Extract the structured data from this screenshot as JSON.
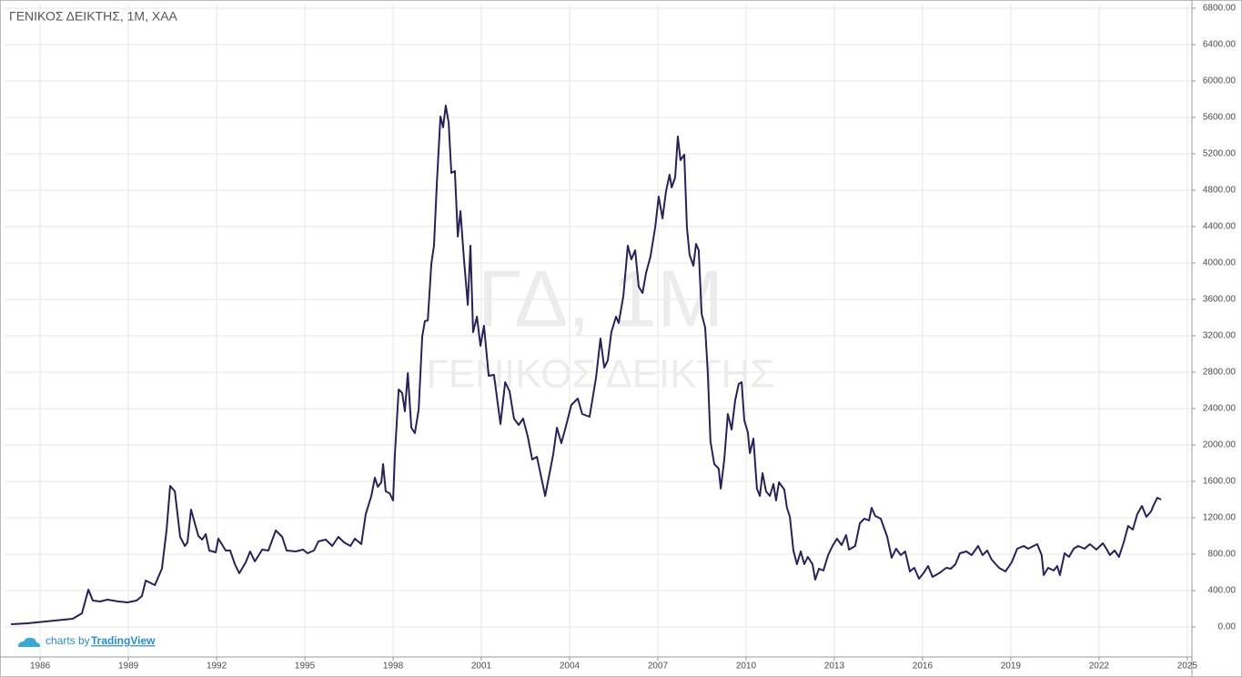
{
  "chart_data": {
    "type": "line",
    "title": "ΓΕΝΙΚΟΣ ΔΕΙΚΤΗΣ, 1M, ΧΑΑ",
    "watermark": [
      "ΓΔ, 1M",
      "ΓΕΝΙΚΟΣ ΔΕΙΚΤΗΣ"
    ],
    "attribution": {
      "prefix": "charts by",
      "link": "TradingView"
    },
    "grid": true,
    "xlim": [
      1984.79,
      2025.16
    ],
    "xticks": [
      1986,
      1989,
      1992,
      1995,
      1998,
      2001,
      2004,
      2007,
      2010,
      2013,
      2016,
      2019,
      2022,
      2025
    ],
    "ylim": [
      -330,
      6840
    ],
    "yticks": [
      {
        "value": 0,
        "label": "0.00"
      },
      {
        "value": 400,
        "label": "400.00"
      },
      {
        "value": 800,
        "label": "800.00"
      },
      {
        "value": 1200,
        "label": "1200.00"
      },
      {
        "value": 1600,
        "label": "1600.00"
      },
      {
        "value": 2000,
        "label": "2000.00"
      },
      {
        "value": 2400,
        "label": "2400.00"
      },
      {
        "value": 2800,
        "label": "2800.00"
      },
      {
        "value": 3200,
        "label": "3200.00"
      },
      {
        "value": 3600,
        "label": "3600.00"
      },
      {
        "value": 4000,
        "label": "4000.00"
      },
      {
        "value": 4400,
        "label": "4400.00"
      },
      {
        "value": 4800,
        "label": "4800.00"
      },
      {
        "value": 5200,
        "label": "5200.00"
      },
      {
        "value": 5600,
        "label": "5600.00"
      },
      {
        "value": 6000,
        "label": "6000.00"
      },
      {
        "value": 6400,
        "label": "6400.00"
      },
      {
        "value": 6800,
        "label": "6800.00"
      }
    ],
    "x": [
      1985.01,
      1985.57,
      1986.49,
      1987.11,
      1987.42,
      1987.64,
      1987.79,
      1988.04,
      1988.29,
      1988.66,
      1988.97,
      1989.28,
      1989.46,
      1989.59,
      1989.9,
      1990.14,
      1990.3,
      1990.42,
      1990.58,
      1990.76,
      1990.92,
      1991.01,
      1991.13,
      1991.38,
      1991.51,
      1991.63,
      1991.75,
      1991.97,
      1992.06,
      1992.31,
      1992.46,
      1992.62,
      1992.77,
      1992.99,
      1993.14,
      1993.3,
      1993.55,
      1993.76,
      1994.01,
      1994.23,
      1994.38,
      1994.69,
      1994.94,
      1995.09,
      1995.31,
      1995.46,
      1995.71,
      1995.93,
      1996.14,
      1996.33,
      1996.55,
      1996.7,
      1996.92,
      1997.07,
      1997.26,
      1997.38,
      1997.48,
      1997.6,
      1997.66,
      1997.75,
      1997.88,
      1998.0,
      1998.06,
      1998.19,
      1998.31,
      1998.4,
      1998.5,
      1998.62,
      1998.74,
      1998.87,
      1998.99,
      1999.08,
      1999.18,
      1999.3,
      1999.39,
      1999.49,
      1999.61,
      1999.7,
      1999.79,
      1999.89,
      1999.98,
      2000.1,
      2000.2,
      2000.29,
      2000.41,
      2000.54,
      2000.63,
      2000.72,
      2000.85,
      2000.97,
      2001.09,
      2001.25,
      2001.43,
      2001.65,
      2001.81,
      2001.96,
      2002.11,
      2002.27,
      2002.42,
      2002.58,
      2002.73,
      2002.89,
      2003.04,
      2003.17,
      2003.32,
      2003.44,
      2003.57,
      2003.72,
      2003.88,
      2004.06,
      2004.28,
      2004.43,
      2004.68,
      2004.9,
      2005.05,
      2005.18,
      2005.3,
      2005.42,
      2005.58,
      2005.67,
      2005.83,
      2005.98,
      2006.1,
      2006.23,
      2006.35,
      2006.48,
      2006.6,
      2006.75,
      2006.91,
      2007.03,
      2007.16,
      2007.28,
      2007.4,
      2007.47,
      2007.59,
      2007.68,
      2007.77,
      2007.9,
      2007.99,
      2008.08,
      2008.21,
      2008.3,
      2008.39,
      2008.49,
      2008.61,
      2008.7,
      2008.79,
      2008.92,
      2009.07,
      2009.14,
      2009.26,
      2009.38,
      2009.51,
      2009.63,
      2009.75,
      2009.85,
      2009.94,
      2010.06,
      2010.13,
      2010.25,
      2010.37,
      2010.47,
      2010.56,
      2010.68,
      2010.81,
      2010.93,
      2011.02,
      2011.12,
      2011.3,
      2011.39,
      2011.49,
      2011.61,
      2011.73,
      2011.86,
      2011.98,
      2012.1,
      2012.26,
      2012.35,
      2012.48,
      2012.63,
      2012.79,
      2012.94,
      2013.09,
      2013.25,
      2013.4,
      2013.5,
      2013.71,
      2013.87,
      2014.02,
      2014.18,
      2014.27,
      2014.39,
      2014.58,
      2014.8,
      2014.95,
      2015.1,
      2015.26,
      2015.41,
      2015.57,
      2015.72,
      2015.88,
      2016.03,
      2016.19,
      2016.34,
      2016.56,
      2016.81,
      2016.96,
      2017.12,
      2017.27,
      2017.49,
      2017.67,
      2017.89,
      2018.04,
      2018.2,
      2018.35,
      2018.6,
      2018.82,
      2019.03,
      2019.22,
      2019.44,
      2019.59,
      2019.9,
      2020.05,
      2020.12,
      2020.27,
      2020.46,
      2020.58,
      2020.67,
      2020.83,
      2020.98,
      2021.14,
      2021.29,
      2021.51,
      2021.69,
      2021.91,
      2022.13,
      2022.25,
      2022.37,
      2022.53,
      2022.68,
      2022.84,
      2022.99,
      2023.15,
      2023.3,
      2023.46,
      2023.61,
      2023.77,
      2023.86,
      2023.98,
      2024.11
    ],
    "series": [
      {
        "color": "#272257",
        "values": [
          30,
          40,
          70,
          90,
          150,
          410,
          290,
          280,
          300,
          280,
          270,
          290,
          340,
          510,
          460,
          640,
          1070,
          1550,
          1490,
          990,
          890,
          930,
          1290,
          1000,
          960,
          1020,
          840,
          820,
          970,
          840,
          840,
          690,
          590,
          710,
          830,
          720,
          850,
          840,
          1060,
          990,
          840,
          830,
          850,
          810,
          840,
          940,
          960,
          890,
          990,
          930,
          890,
          970,
          910,
          1240,
          1440,
          1640,
          1540,
          1590,
          1790,
          1490,
          1470,
          1390,
          1890,
          2610,
          2570,
          2370,
          2790,
          2190,
          2130,
          2390,
          3190,
          3360,
          3370,
          3990,
          4190,
          4890,
          5610,
          5490,
          5730,
          5540,
          4990,
          5010,
          4290,
          4570,
          4040,
          3540,
          4190,
          3240,
          3410,
          3090,
          3310,
          2760,
          2770,
          2230,
          2690,
          2590,
          2290,
          2220,
          2290,
          2090,
          1840,
          1870,
          1640,
          1440,
          1690,
          1890,
          2190,
          2020,
          2210,
          2440,
          2510,
          2340,
          2310,
          2740,
          3170,
          2850,
          2930,
          3240,
          3410,
          3340,
          3640,
          4190,
          4040,
          4140,
          3740,
          3670,
          3890,
          4070,
          4390,
          4730,
          4490,
          4790,
          4970,
          4830,
          4940,
          5390,
          5130,
          5190,
          4390,
          4090,
          3970,
          4210,
          4140,
          3440,
          3290,
          2790,
          2040,
          1790,
          1740,
          1520,
          1840,
          2340,
          2170,
          2490,
          2670,
          2690,
          2270,
          2140,
          1910,
          2070,
          1520,
          1440,
          1690,
          1490,
          1440,
          1570,
          1390,
          1590,
          1510,
          1310,
          1210,
          840,
          690,
          830,
          690,
          770,
          690,
          520,
          640,
          620,
          790,
          890,
          970,
          900,
          1010,
          850,
          890,
          1140,
          1190,
          1170,
          1310,
          1220,
          1190,
          990,
          760,
          860,
          790,
          830,
          610,
          650,
          530,
          590,
          670,
          550,
          590,
          650,
          640,
          690,
          810,
          830,
          790,
          890,
          790,
          840,
          740,
          650,
          610,
          710,
          860,
          890,
          860,
          910,
          790,
          570,
          650,
          620,
          670,
          570,
          810,
          770,
          860,
          890,
          860,
          910,
          850,
          920,
          860,
          790,
          840,
          770,
          930,
          1110,
          1070,
          1240,
          1330,
          1210,
          1270,
          1340,
          1420,
          1400
        ]
      }
    ]
  }
}
